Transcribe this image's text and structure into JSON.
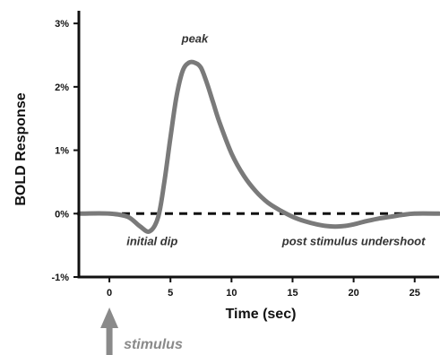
{
  "chart_data": {
    "type": "line",
    "title": "",
    "xlabel": "Time (sec)",
    "ylabel": "BOLD Response",
    "xlim": [
      -2.5,
      27
    ],
    "ylim": [
      -1,
      3.2
    ],
    "xticks": [
      0,
      5,
      10,
      15,
      20,
      25
    ],
    "xtick_labels": [
      "0",
      "5",
      "10",
      "15",
      "20",
      "25"
    ],
    "yticks": [
      -1,
      0,
      1,
      2,
      3
    ],
    "ytick_labels": [
      "-1%",
      "0%",
      "1%",
      "2%",
      "3%"
    ],
    "baseline": {
      "y": 0,
      "style": "dashed"
    },
    "series": [
      {
        "color": "#7a7a7a",
        "x": [
          -2.5,
          0,
          1.5,
          2.5,
          3.3,
          4.0,
          4.5,
          5.0,
          5.5,
          6.0,
          6.5,
          7.0,
          7.5,
          8.0,
          8.5,
          9.0,
          10.0,
          11.0,
          12.0,
          13.0,
          14.0,
          15.0,
          16.0,
          17.0,
          18.0,
          19.0,
          20.0,
          21.0,
          22.0,
          23.0,
          24.0,
          25.0,
          27.0
        ],
        "y": [
          0,
          0,
          -0.05,
          -0.2,
          -0.28,
          -0.05,
          0.5,
          1.2,
          1.85,
          2.25,
          2.38,
          2.38,
          2.3,
          2.05,
          1.75,
          1.45,
          0.95,
          0.6,
          0.35,
          0.17,
          0.05,
          -0.05,
          -0.12,
          -0.17,
          -0.2,
          -0.2,
          -0.17,
          -0.12,
          -0.08,
          -0.05,
          -0.02,
          0.0,
          0.0
        ]
      }
    ],
    "annotations": [
      {
        "text": "peak",
        "x": 7,
        "y": 2.7
      },
      {
        "text": "initial dip",
        "x": 3.5,
        "y": -0.5
      },
      {
        "text": "post stimulus undershoot",
        "x": 20,
        "y": -0.5
      }
    ],
    "stimulus": {
      "label": "stimulus",
      "x": 0
    }
  }
}
